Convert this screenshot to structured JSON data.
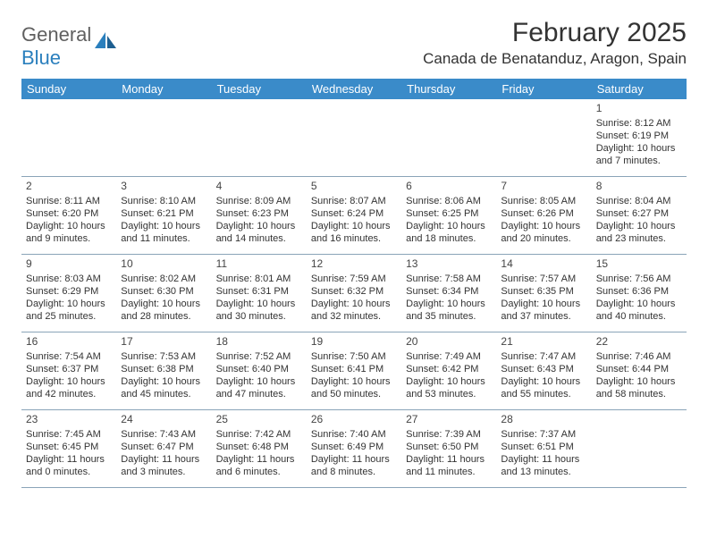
{
  "logo": {
    "general": "General",
    "blue": "Blue"
  },
  "title": "February 2025",
  "location": "Canada de Benatanduz, Aragon, Spain",
  "colors": {
    "header_bg": "#3a8bc9",
    "header_text": "#ffffff",
    "grid_line": "#8aa4b8",
    "text": "#333333",
    "logo_blue": "#2a7fbd"
  },
  "day_headers": [
    "Sunday",
    "Monday",
    "Tuesday",
    "Wednesday",
    "Thursday",
    "Friday",
    "Saturday"
  ],
  "weeks": [
    [
      null,
      null,
      null,
      null,
      null,
      null,
      {
        "n": "1",
        "sr": "Sunrise: 8:12 AM",
        "ss": "Sunset: 6:19 PM",
        "dl": "Daylight: 10 hours and 7 minutes."
      }
    ],
    [
      {
        "n": "2",
        "sr": "Sunrise: 8:11 AM",
        "ss": "Sunset: 6:20 PM",
        "dl": "Daylight: 10 hours and 9 minutes."
      },
      {
        "n": "3",
        "sr": "Sunrise: 8:10 AM",
        "ss": "Sunset: 6:21 PM",
        "dl": "Daylight: 10 hours and 11 minutes."
      },
      {
        "n": "4",
        "sr": "Sunrise: 8:09 AM",
        "ss": "Sunset: 6:23 PM",
        "dl": "Daylight: 10 hours and 14 minutes."
      },
      {
        "n": "5",
        "sr": "Sunrise: 8:07 AM",
        "ss": "Sunset: 6:24 PM",
        "dl": "Daylight: 10 hours and 16 minutes."
      },
      {
        "n": "6",
        "sr": "Sunrise: 8:06 AM",
        "ss": "Sunset: 6:25 PM",
        "dl": "Daylight: 10 hours and 18 minutes."
      },
      {
        "n": "7",
        "sr": "Sunrise: 8:05 AM",
        "ss": "Sunset: 6:26 PM",
        "dl": "Daylight: 10 hours and 20 minutes."
      },
      {
        "n": "8",
        "sr": "Sunrise: 8:04 AM",
        "ss": "Sunset: 6:27 PM",
        "dl": "Daylight: 10 hours and 23 minutes."
      }
    ],
    [
      {
        "n": "9",
        "sr": "Sunrise: 8:03 AM",
        "ss": "Sunset: 6:29 PM",
        "dl": "Daylight: 10 hours and 25 minutes."
      },
      {
        "n": "10",
        "sr": "Sunrise: 8:02 AM",
        "ss": "Sunset: 6:30 PM",
        "dl": "Daylight: 10 hours and 28 minutes."
      },
      {
        "n": "11",
        "sr": "Sunrise: 8:01 AM",
        "ss": "Sunset: 6:31 PM",
        "dl": "Daylight: 10 hours and 30 minutes."
      },
      {
        "n": "12",
        "sr": "Sunrise: 7:59 AM",
        "ss": "Sunset: 6:32 PM",
        "dl": "Daylight: 10 hours and 32 minutes."
      },
      {
        "n": "13",
        "sr": "Sunrise: 7:58 AM",
        "ss": "Sunset: 6:34 PM",
        "dl": "Daylight: 10 hours and 35 minutes."
      },
      {
        "n": "14",
        "sr": "Sunrise: 7:57 AM",
        "ss": "Sunset: 6:35 PM",
        "dl": "Daylight: 10 hours and 37 minutes."
      },
      {
        "n": "15",
        "sr": "Sunrise: 7:56 AM",
        "ss": "Sunset: 6:36 PM",
        "dl": "Daylight: 10 hours and 40 minutes."
      }
    ],
    [
      {
        "n": "16",
        "sr": "Sunrise: 7:54 AM",
        "ss": "Sunset: 6:37 PM",
        "dl": "Daylight: 10 hours and 42 minutes."
      },
      {
        "n": "17",
        "sr": "Sunrise: 7:53 AM",
        "ss": "Sunset: 6:38 PM",
        "dl": "Daylight: 10 hours and 45 minutes."
      },
      {
        "n": "18",
        "sr": "Sunrise: 7:52 AM",
        "ss": "Sunset: 6:40 PM",
        "dl": "Daylight: 10 hours and 47 minutes."
      },
      {
        "n": "19",
        "sr": "Sunrise: 7:50 AM",
        "ss": "Sunset: 6:41 PM",
        "dl": "Daylight: 10 hours and 50 minutes."
      },
      {
        "n": "20",
        "sr": "Sunrise: 7:49 AM",
        "ss": "Sunset: 6:42 PM",
        "dl": "Daylight: 10 hours and 53 minutes."
      },
      {
        "n": "21",
        "sr": "Sunrise: 7:47 AM",
        "ss": "Sunset: 6:43 PM",
        "dl": "Daylight: 10 hours and 55 minutes."
      },
      {
        "n": "22",
        "sr": "Sunrise: 7:46 AM",
        "ss": "Sunset: 6:44 PM",
        "dl": "Daylight: 10 hours and 58 minutes."
      }
    ],
    [
      {
        "n": "23",
        "sr": "Sunrise: 7:45 AM",
        "ss": "Sunset: 6:45 PM",
        "dl": "Daylight: 11 hours and 0 minutes."
      },
      {
        "n": "24",
        "sr": "Sunrise: 7:43 AM",
        "ss": "Sunset: 6:47 PM",
        "dl": "Daylight: 11 hours and 3 minutes."
      },
      {
        "n": "25",
        "sr": "Sunrise: 7:42 AM",
        "ss": "Sunset: 6:48 PM",
        "dl": "Daylight: 11 hours and 6 minutes."
      },
      {
        "n": "26",
        "sr": "Sunrise: 7:40 AM",
        "ss": "Sunset: 6:49 PM",
        "dl": "Daylight: 11 hours and 8 minutes."
      },
      {
        "n": "27",
        "sr": "Sunrise: 7:39 AM",
        "ss": "Sunset: 6:50 PM",
        "dl": "Daylight: 11 hours and 11 minutes."
      },
      {
        "n": "28",
        "sr": "Sunrise: 7:37 AM",
        "ss": "Sunset: 6:51 PM",
        "dl": "Daylight: 11 hours and 13 minutes."
      },
      null
    ]
  ]
}
